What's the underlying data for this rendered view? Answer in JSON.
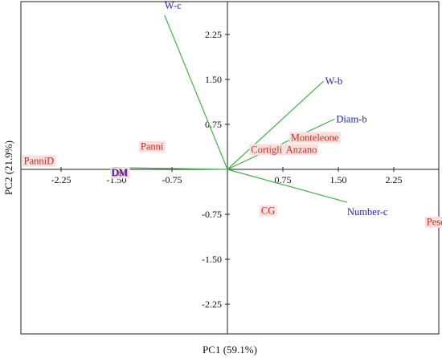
{
  "chart_data": {
    "type": "scatter",
    "subtype": "pca-biplot",
    "xlabel": "PC1 (59.1%)",
    "ylabel": "PC2 (21.9%)",
    "xlim": [
      -2.9,
      2.9
    ],
    "ylim": [
      -2.95,
      2.95
    ],
    "xticks": [
      -2.25,
      -1.5,
      -0.75,
      0.75,
      1.5,
      2.25
    ],
    "xtick_labels": [
      "-2.25",
      "-1.50",
      "-0.75",
      "0.75",
      "1.50",
      "2.25"
    ],
    "yticks": [
      2.25,
      1.5,
      0.75,
      -0.75,
      -1.5,
      -2.25
    ],
    "ytick_labels": [
      "2.25",
      "1.50",
      "0.75",
      "-0.75",
      "-1.50",
      "-2.25"
    ],
    "observations": [
      {
        "label": "PanniD",
        "x": -2.55,
        "y": 0.14
      },
      {
        "label": "Panni",
        "x": -1.02,
        "y": 0.38
      },
      {
        "label": "DM",
        "x": -1.45,
        "y": -0.06
      },
      {
        "label": "Cortigli",
        "x": 0.53,
        "y": 0.33
      },
      {
        "label": "Monteleone",
        "x": 1.18,
        "y": 0.53
      },
      {
        "label": "Anzano",
        "x": 1.0,
        "y": 0.33
      },
      {
        "label": "CG",
        "x": 0.55,
        "y": -0.69
      },
      {
        "label": "Peschici",
        "x": 2.92,
        "y": -0.88
      }
    ],
    "variables": [
      {
        "label": "W-c",
        "x": -0.85,
        "y": 2.57
      },
      {
        "label": "W-b",
        "x": 1.3,
        "y": 1.47
      },
      {
        "label": "Diam-b",
        "x": 1.45,
        "y": 0.84
      },
      {
        "label": "Number-c",
        "x": 1.62,
        "y": -0.55
      },
      {
        "label": "DM",
        "x": -1.55,
        "y": 0.03
      }
    ],
    "colors": {
      "observation_text": "#cc2b1d",
      "observation_bg": "#f7e1df",
      "variable_text": "#1f1fbf",
      "vector": "#47b047",
      "axis": "#222222"
    }
  }
}
